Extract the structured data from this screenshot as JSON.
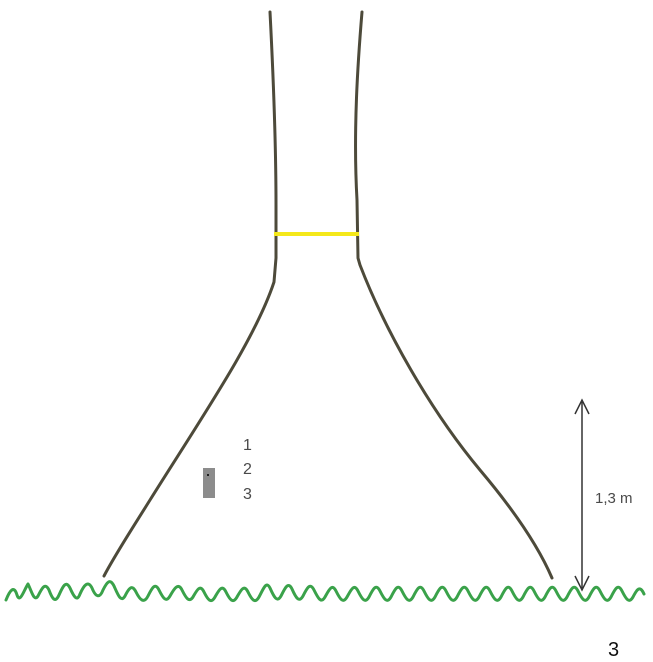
{
  "diagram": {
    "level_labels": [
      "1",
      "2",
      "3"
    ],
    "height_label": "1,3 m",
    "page_number": "3"
  },
  "colors": {
    "trunk": "#4d4a3a",
    "ring": "#f4e81a",
    "grass": "#3aa24a",
    "marker": "#8c8c8c",
    "arrow": "#333333"
  },
  "icons": {
    "trunk": "tree-trunk-outline",
    "ring": "yellow-band",
    "marker": "gray-tag",
    "arrow": "double-headed-arrow",
    "grass": "grass-line"
  }
}
